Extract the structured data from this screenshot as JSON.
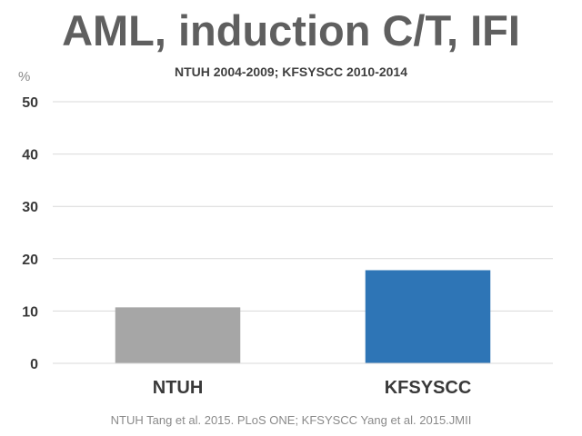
{
  "title": "AML, induction C/T, IFI",
  "subtitle": "NTUH 2004-2009; KFSYSCC 2010-2014",
  "ylabel": "%",
  "footnote": "NTUH Tang et al. 2015. PLoS ONE; KFSYSCC Yang et al. 2015.JMII",
  "chart_data": {
    "type": "bar",
    "categories": [
      "NTUH",
      "KFSYSCC"
    ],
    "values": [
      10.7,
      17.8
    ],
    "colors": [
      "#a6a6a6",
      "#2e75b6"
    ],
    "title": "AML, induction C/T, IFI",
    "subtitle": "NTUH 2004-2009; KFSYSCC 2010-2014",
    "xlabel": "",
    "ylabel": "%",
    "ylim": [
      0,
      50
    ],
    "yticks": [
      0,
      10,
      20,
      30,
      40,
      50
    ],
    "grid": true,
    "legend": "none"
  }
}
